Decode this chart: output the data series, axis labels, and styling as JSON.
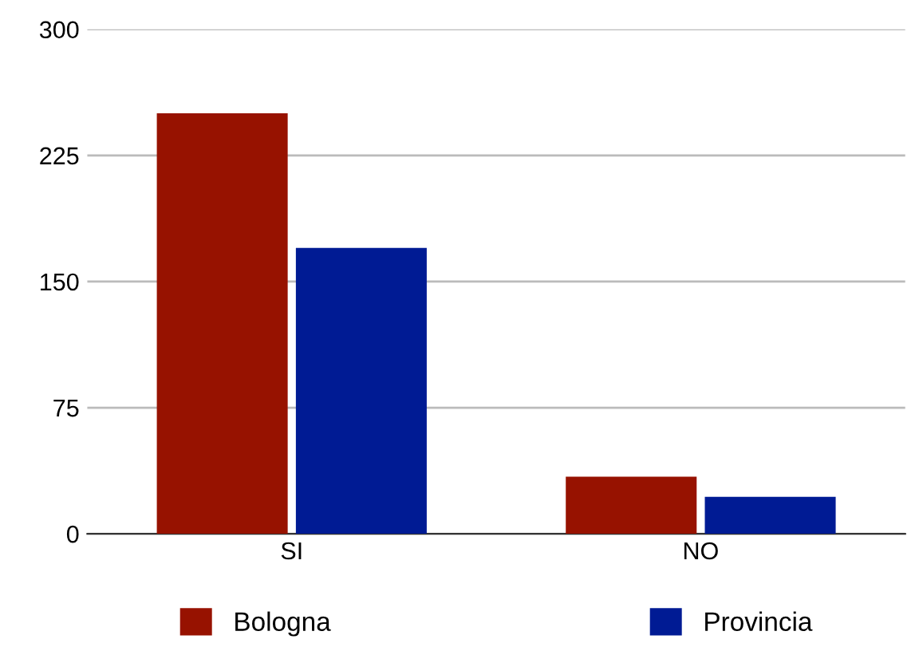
{
  "chart_data": {
    "type": "bar",
    "categories": [
      "SI",
      "NO"
    ],
    "series": [
      {
        "name": "Bologna",
        "color": "#971200",
        "values": [
          250,
          34
        ]
      },
      {
        "name": "Provincia",
        "color": "#001b94",
        "values": [
          170,
          22
        ]
      }
    ],
    "ylim": [
      0,
      300
    ],
    "yticks": [
      0,
      75,
      150,
      225,
      300
    ],
    "grid": "y",
    "legend": "bottom"
  }
}
